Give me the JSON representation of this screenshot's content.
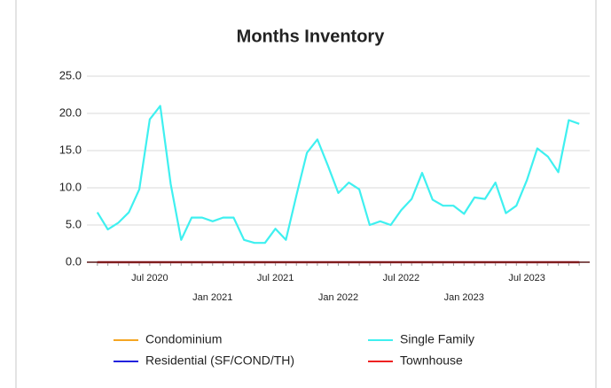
{
  "chart_data": {
    "type": "line",
    "title": "Months Inventory",
    "categories": [
      null,
      null,
      null,
      null,
      null,
      "Jul 2020",
      null,
      null,
      null,
      null,
      null,
      "Jan 2021",
      null,
      null,
      null,
      null,
      null,
      "Jul 2021",
      null,
      null,
      null,
      null,
      null,
      "Jan 2022",
      null,
      null,
      null,
      null,
      null,
      "Jul 2022",
      null,
      null,
      null,
      null,
      null,
      "Jan 2023",
      null,
      null,
      null,
      null,
      null,
      "Jul 2023",
      null,
      null,
      null,
      null,
      null
    ],
    "series": [
      {
        "name": "Condominium",
        "color": "#f5a623",
        "values": [
          0,
          0,
          0,
          0,
          0,
          0,
          0,
          0,
          0,
          0,
          0,
          0,
          0,
          0,
          0,
          0,
          0,
          0,
          0,
          0,
          0,
          0,
          0,
          0,
          0,
          0,
          0,
          0,
          0,
          0,
          0,
          0,
          0,
          0,
          0,
          0,
          0,
          0,
          0,
          0,
          0,
          0,
          0,
          0,
          0,
          0,
          0
        ]
      },
      {
        "name": "Single Family",
        "color": "#3ff0f0",
        "values": [
          6.7,
          4.4,
          5.3,
          6.7,
          9.8,
          19.2,
          21.0,
          10.5,
          3.0,
          6.0,
          6.0,
          5.5,
          6.0,
          6.0,
          3.0,
          2.6,
          2.6,
          4.5,
          3.0,
          9.0,
          14.7,
          16.5,
          13.0,
          9.3,
          10.7,
          9.8,
          5.0,
          5.5,
          5.0,
          7.0,
          8.5,
          12.0,
          8.4,
          7.6,
          7.6,
          6.5,
          8.7,
          8.5,
          10.7,
          6.6,
          7.6,
          11.0,
          15.3,
          14.2,
          12.1,
          19.1,
          18.6
        ]
      },
      {
        "name": "Residential (SF/COND/TH)",
        "color": "#2222dd",
        "values": [
          0,
          0,
          0,
          0,
          0,
          0,
          0,
          0,
          0,
          0,
          0,
          0,
          0,
          0,
          0,
          0,
          0,
          0,
          0,
          0,
          0,
          0,
          0,
          0,
          0,
          0,
          0,
          0,
          0,
          0,
          0,
          0,
          0,
          0,
          0,
          0,
          0,
          0,
          0,
          0,
          0,
          0,
          0,
          0,
          0,
          0,
          0
        ]
      },
      {
        "name": "Townhouse",
        "color": "#ee2222",
        "values": [
          0,
          0,
          0,
          0,
          0,
          0,
          0,
          0,
          0,
          0,
          0,
          0,
          0,
          0,
          0,
          0,
          0,
          0,
          0,
          0,
          0,
          0,
          0,
          0,
          0,
          0,
          0,
          0,
          0,
          0,
          0,
          0,
          0,
          0,
          0,
          0,
          0,
          0,
          0,
          0,
          0,
          0,
          0,
          0,
          0,
          0,
          0
        ]
      }
    ],
    "ylim": [
      0,
      25
    ],
    "yticks": [
      {
        "value": 0,
        "label": "0.0"
      },
      {
        "value": 5,
        "label": "5.0"
      },
      {
        "value": 10,
        "label": "10.0"
      },
      {
        "value": 15,
        "label": "15.0"
      },
      {
        "value": 20,
        "label": "20.0"
      },
      {
        "value": 25,
        "label": "25.0"
      }
    ],
    "grid": true,
    "legend": "bottom"
  }
}
